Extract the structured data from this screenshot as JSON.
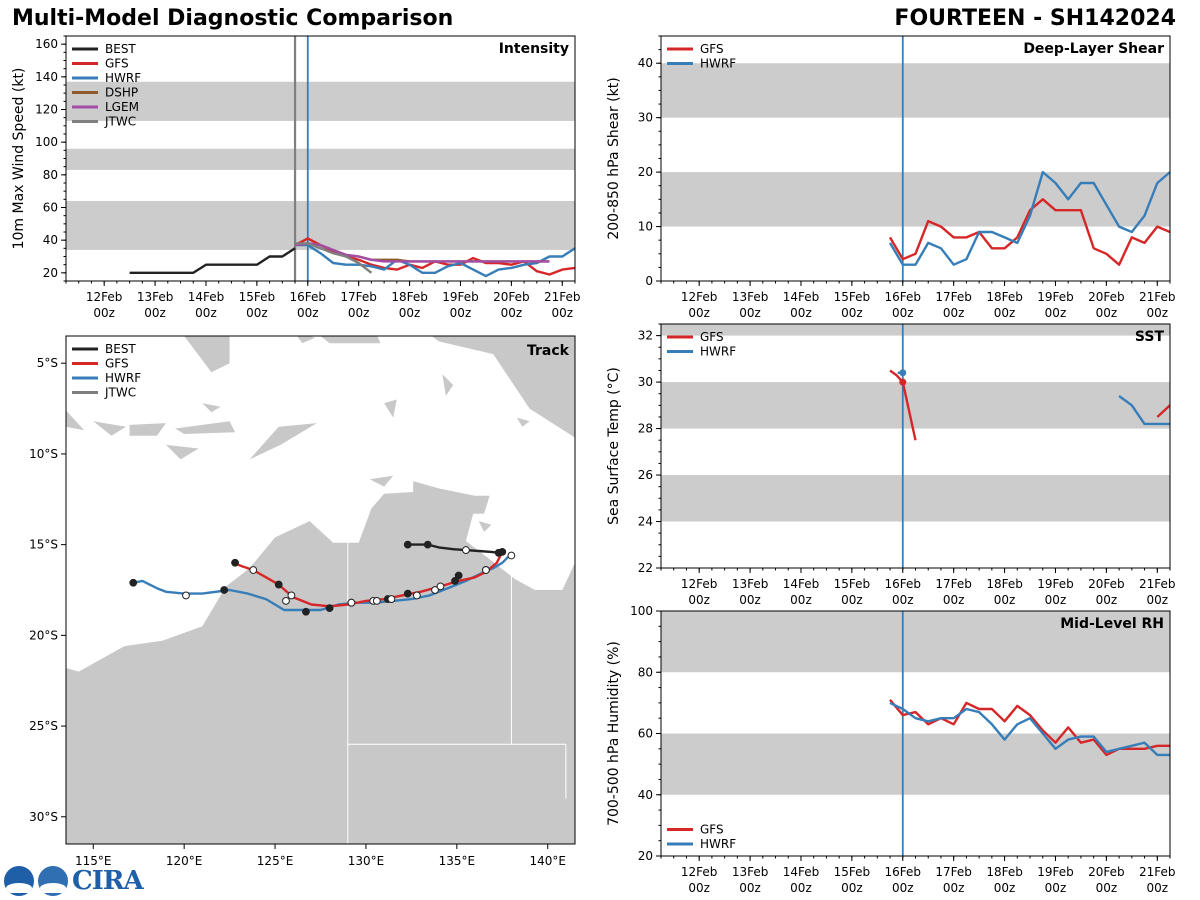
{
  "header": {
    "left_title": "Multi-Model Diagnostic Comparison",
    "right_title": "FOURTEEN - SH142024"
  },
  "colors": {
    "BEST": "#222222",
    "GFS": "#d62728",
    "HWRF": "#377eb8",
    "DSHP": "#8c5a2b",
    "LGEM": "#a44ca7",
    "JTWC": "#7f7f7f",
    "band": "#cccccc",
    "land": "#c8c8c8"
  },
  "time_axis": {
    "tick_labels": [
      "12Feb\n00z",
      "13Feb\n00z",
      "14Feb\n00z",
      "15Feb\n00z",
      "16Feb\n00z",
      "17Feb\n00z",
      "18Feb\n00z",
      "19Feb\n00z",
      "20Feb\n00z",
      "21Feb\n00z"
    ],
    "tick_days": [
      12,
      13,
      14,
      15,
      16,
      17,
      18,
      19,
      20,
      21
    ],
    "xlim": [
      11.25,
      21.25
    ],
    "init_line_day": 16.0,
    "jtwc_line_day": 15.75
  },
  "logo": {
    "text": "CIRA"
  },
  "chart_data": [
    {
      "id": "intensity",
      "type": "line",
      "title": "Intensity",
      "ylabel": "10m Max Wind Speed (kt)",
      "ylim": [
        15,
        165
      ],
      "yticks": [
        20,
        40,
        60,
        80,
        100,
        120,
        140,
        160
      ],
      "bands": [
        [
          34,
          64
        ],
        [
          83,
          96
        ],
        [
          113,
          137
        ]
      ],
      "legend": [
        "BEST",
        "GFS",
        "HWRF",
        "DSHP",
        "LGEM",
        "JTWC"
      ],
      "series": [
        {
          "name": "BEST",
          "x": [
            12.5,
            12.75,
            13,
            13.25,
            13.5,
            13.75,
            14,
            14.25,
            14.5,
            14.75,
            15,
            15.25,
            15.5,
            15.75
          ],
          "y": [
            20,
            20,
            20,
            20,
            20,
            20,
            25,
            25,
            25,
            25,
            25,
            30,
            30,
            35
          ]
        },
        {
          "name": "GFS",
          "x": [
            15.75,
            16,
            16.25,
            16.5,
            16.75,
            17,
            17.25,
            17.5,
            17.75,
            18,
            18.25,
            18.5,
            18.75,
            19,
            19.25,
            19.5,
            19.75,
            20,
            20.25,
            20.5,
            20.75,
            21,
            21.25
          ],
          "y": [
            37,
            41,
            37,
            33,
            30,
            28,
            25,
            23,
            22,
            25,
            23,
            27,
            25,
            25,
            29,
            26,
            26,
            25,
            27,
            21,
            19,
            22,
            23
          ]
        },
        {
          "name": "HWRF",
          "x": [
            15.75,
            16,
            16.25,
            16.5,
            16.75,
            17,
            17.25,
            17.5,
            17.75,
            18,
            18.25,
            18.5,
            18.75,
            19,
            19.25,
            19.5,
            19.75,
            20,
            20.25,
            20.5,
            20.75,
            21,
            21.25
          ],
          "y": [
            37,
            37,
            32,
            26,
            25,
            25,
            24,
            22,
            28,
            25,
            20,
            20,
            24,
            26,
            22,
            18,
            22,
            23,
            25,
            26,
            30,
            30,
            35
          ]
        },
        {
          "name": "DSHP",
          "x": [
            15.75,
            16,
            16.25,
            16.5,
            16.75,
            17,
            17.25,
            17.5,
            17.75,
            18,
            18.5,
            19,
            19.5,
            20,
            20.5,
            20.75
          ],
          "y": [
            37,
            38,
            37,
            34,
            31,
            30,
            28,
            28,
            28,
            27,
            27,
            27,
            27,
            27,
            27,
            27
          ]
        },
        {
          "name": "LGEM",
          "x": [
            15.75,
            16,
            16.25,
            16.5,
            16.75,
            17,
            17.25,
            17.5,
            17.75,
            18,
            18.5,
            19,
            19.5,
            20,
            20.5,
            20.75
          ],
          "y": [
            37,
            38,
            37,
            34,
            31,
            30,
            28,
            27,
            27,
            27,
            27,
            27,
            27,
            27,
            27,
            27
          ]
        },
        {
          "name": "JTWC",
          "x": [
            15.75,
            16,
            16.25,
            16.5,
            16.75,
            17,
            17.25
          ],
          "y": [
            38,
            38,
            35,
            32,
            30,
            26,
            20
          ]
        }
      ]
    },
    {
      "id": "shear",
      "type": "line",
      "title": "Deep-Layer Shear",
      "ylabel": "200-850 hPa Shear (kt)",
      "ylim": [
        0,
        45
      ],
      "yticks": [
        0,
        10,
        20,
        30,
        40
      ],
      "bands": [
        [
          10,
          20
        ],
        [
          30,
          40
        ]
      ],
      "legend": [
        "GFS",
        "HWRF"
      ],
      "series": [
        {
          "name": "GFS",
          "x": [
            15.75,
            16,
            16.25,
            16.5,
            16.75,
            17,
            17.25,
            17.5,
            17.75,
            18,
            18.25,
            18.5,
            18.75,
            19,
            19.25,
            19.5,
            19.75,
            20,
            20.25,
            20.5,
            20.75,
            21,
            21.25
          ],
          "y": [
            8,
            4,
            5,
            11,
            10,
            8,
            8,
            9,
            6,
            6,
            8,
            13,
            15,
            13,
            13,
            13,
            6,
            5,
            3,
            8,
            7,
            10,
            9
          ]
        },
        {
          "name": "HWRF",
          "x": [
            15.75,
            16,
            16.25,
            16.5,
            16.75,
            17,
            17.25,
            17.5,
            17.75,
            18,
            18.25,
            18.5,
            18.75,
            19,
            19.25,
            19.5,
            19.75,
            20,
            20.25,
            20.5,
            20.75,
            21,
            21.25
          ],
          "y": [
            7,
            3,
            3,
            7,
            6,
            3,
            4,
            9,
            9,
            8,
            7,
            12,
            20,
            18,
            15,
            18,
            18,
            14,
            10,
            9,
            12,
            18,
            20
          ]
        }
      ]
    },
    {
      "id": "sst",
      "type": "line",
      "title": "SST",
      "ylabel": "Sea Surface Temp (°C)",
      "ylim": [
        22,
        32.5
      ],
      "yticks": [
        22,
        24,
        26,
        28,
        30,
        32
      ],
      "bands": [
        [
          24,
          26
        ],
        [
          28,
          30
        ],
        [
          32,
          34
        ]
      ],
      "legend": [
        "GFS",
        "HWRF"
      ],
      "series": [
        {
          "name": "GFS",
          "x": [
            15.75,
            15.875,
            16,
            16.25
          ],
          "y": [
            30.5,
            30.3,
            30,
            27.5
          ]
        },
        {
          "name": "GFS",
          "x": [
            21,
            21.25
          ],
          "y": [
            28.5,
            29
          ]
        },
        {
          "name": "HWRF",
          "x": [
            15.9,
            16
          ],
          "y": [
            30.4,
            30.4
          ]
        },
        {
          "name": "HWRF",
          "x": [
            20.25,
            20.5,
            20.75,
            21,
            21.25
          ],
          "y": [
            29.4,
            29,
            28.2,
            28.2,
            28.2
          ]
        }
      ],
      "markers": [
        {
          "name": "GFS",
          "x": 16,
          "y": 30
        },
        {
          "name": "HWRF",
          "x": 16,
          "y": 30.4
        }
      ]
    },
    {
      "id": "rh",
      "type": "line",
      "title": "Mid-Level RH",
      "ylabel": "700-500 hPa Humidity (%)",
      "ylim": [
        20,
        100
      ],
      "yticks": [
        20,
        40,
        60,
        80,
        100
      ],
      "bands": [
        [
          40,
          60
        ],
        [
          80,
          100
        ]
      ],
      "legend": [
        "GFS",
        "HWRF"
      ],
      "series": [
        {
          "name": "GFS",
          "x": [
            15.75,
            16,
            16.25,
            16.5,
            16.75,
            17,
            17.25,
            17.5,
            17.75,
            18,
            18.25,
            18.5,
            18.75,
            19,
            19.25,
            19.5,
            19.75,
            20,
            20.25,
            20.5,
            20.75,
            21,
            21.25
          ],
          "y": [
            71,
            66,
            67,
            63,
            65,
            63,
            70,
            68,
            68,
            64,
            69,
            66,
            61,
            57,
            62,
            57,
            58,
            53,
            55,
            55,
            55,
            56,
            56
          ]
        },
        {
          "name": "HWRF",
          "x": [
            15.75,
            16,
            16.25,
            16.5,
            16.75,
            17,
            17.25,
            17.5,
            17.75,
            18,
            18.25,
            18.5,
            18.75,
            19,
            19.25,
            19.5,
            19.75,
            20,
            20.25,
            20.5,
            20.75,
            21,
            21.25
          ],
          "y": [
            70,
            68,
            65,
            64,
            65,
            65,
            68,
            67,
            63,
            58,
            63,
            65,
            60,
            55,
            58,
            59,
            59,
            54,
            55,
            56,
            57,
            53,
            53
          ]
        }
      ]
    },
    {
      "id": "track",
      "type": "scatter",
      "title": "Track",
      "xlim": [
        113.5,
        141.5
      ],
      "ylim": [
        -31.5,
        -3.5
      ],
      "xticks": [
        115,
        120,
        125,
        130,
        135,
        140
      ],
      "xtick_labels": [
        "115°E",
        "120°E",
        "125°E",
        "130°E",
        "135°E",
        "140°E"
      ],
      "yticks": [
        -5,
        -10,
        -15,
        -20,
        -25,
        -30
      ],
      "ytick_labels": [
        "5°S",
        "10°S",
        "15°S",
        "20°S",
        "25°S",
        "30°S"
      ],
      "legend": [
        "BEST",
        "GFS",
        "HWRF",
        "JTWC"
      ],
      "series": [
        {
          "name": "BEST",
          "lon": [
            137.3,
            136.9,
            136.2,
            135.5,
            134.8,
            134.0,
            133.4,
            132.9,
            132.3
          ],
          "lat": [
            -15.45,
            -15.4,
            -15.35,
            -15.3,
            -15.25,
            -15.15,
            -15.0,
            -15.0,
            -15.0
          ]
        },
        {
          "name": "GFS",
          "lon": [
            137.5,
            137.2,
            136.6,
            136.0,
            135.1,
            134.1,
            133.0,
            132.0,
            131.0,
            130.0,
            129.0,
            128.0,
            127.0,
            126.0,
            125.2,
            124.5,
            123.8,
            123.2,
            122.7
          ],
          "lat": [
            -15.4,
            -16.0,
            -16.5,
            -16.8,
            -17.0,
            -17.3,
            -17.6,
            -17.8,
            -18.0,
            -18.1,
            -18.3,
            -18.4,
            -18.3,
            -17.9,
            -17.2,
            -16.8,
            -16.4,
            -16.2,
            -16.0
          ]
        },
        {
          "name": "HWRF",
          "lon": [
            138.0,
            137.5,
            137.0,
            136.5,
            135.5,
            134.5,
            133.5,
            132.5,
            131.5,
            130.5,
            129.5,
            128.5,
            127.5,
            126.5,
            125.5,
            124.5,
            123.5,
            122.5,
            121.0,
            120.0,
            119.0,
            118.5,
            117.7,
            117.2
          ],
          "lat": [
            -15.5,
            -16.0,
            -16.3,
            -16.5,
            -17.0,
            -17.4,
            -17.8,
            -18.0,
            -18.1,
            -18.2,
            -18.2,
            -18.3,
            -18.6,
            -18.6,
            -18.6,
            -18.0,
            -17.7,
            -17.5,
            -17.7,
            -17.7,
            -17.6,
            -17.4,
            -17.0,
            -17.1
          ]
        },
        {
          "name": "JTWC",
          "lon": [
            137.5,
            137.6
          ],
          "lat": [
            -15.4,
            -15.5
          ]
        }
      ],
      "markers": [
        {
          "name": "BEST",
          "lon": [
            137.3,
            135.5,
            133.4,
            132.3
          ],
          "lat": [
            -15.45,
            -15.3,
            -15.0,
            -15.0
          ],
          "filled": [
            true,
            false,
            true,
            true
          ]
        },
        {
          "name": "GFS",
          "lon": [
            137.5,
            136.6,
            135.1,
            134.1,
            132.3,
            131.2,
            130.4,
            129.2,
            128.0,
            126.7,
            125.9,
            125.2,
            123.8,
            122.8
          ],
          "lat": [
            -15.4,
            -16.4,
            -16.7,
            -17.3,
            -17.7,
            -18.0,
            -18.1,
            -18.2,
            -18.5,
            -18.7,
            -17.8,
            -17.2,
            -16.4,
            -16.0
          ],
          "filled": [
            true,
            false,
            true,
            false,
            true,
            true,
            false,
            false,
            true,
            true,
            false,
            true,
            false,
            true
          ]
        },
        {
          "name": "HWRF",
          "lon": [
            138.0,
            136.6,
            134.9,
            133.8,
            132.8,
            131.4,
            130.6,
            129.2,
            125.6,
            122.2,
            120.1,
            117.2
          ],
          "lat": [
            -15.6,
            -16.4,
            -17.0,
            -17.5,
            -17.8,
            -18.0,
            -18.1,
            -18.2,
            -18.1,
            -17.5,
            -17.8,
            -17.1
          ],
          "filled": [
            false,
            false,
            true,
            false,
            false,
            false,
            false,
            false,
            false,
            true,
            false,
            true
          ]
        }
      ]
    }
  ]
}
